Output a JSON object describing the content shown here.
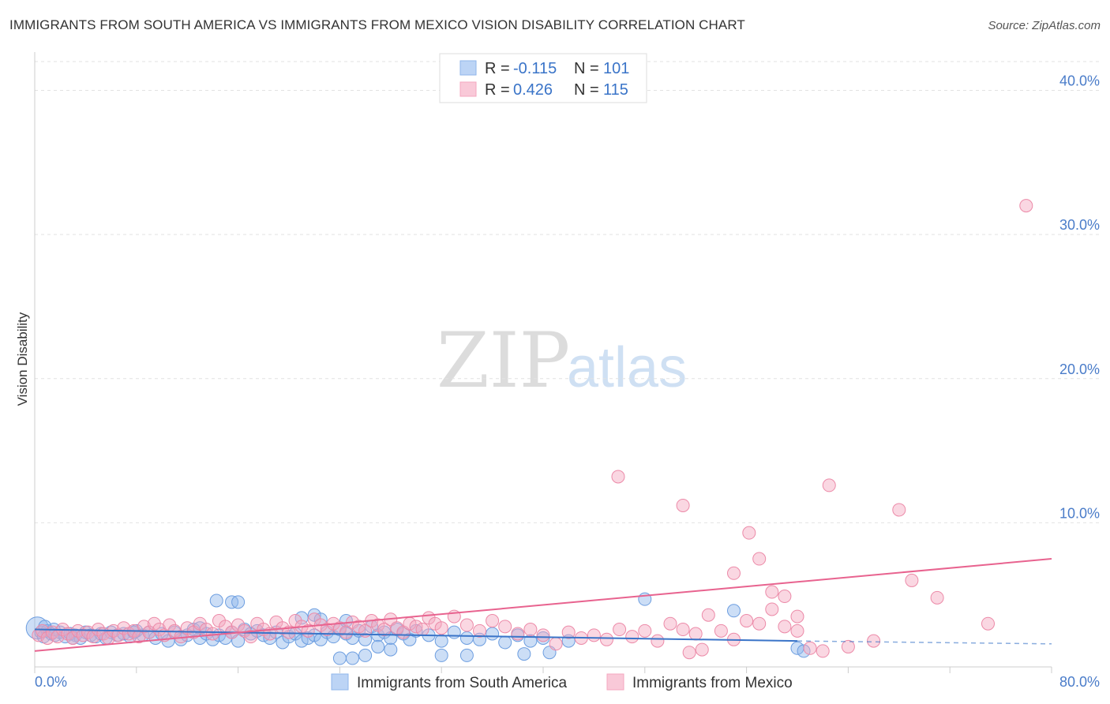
{
  "title": "IMMIGRANTS FROM SOUTH AMERICA VS IMMIGRANTS FROM MEXICO VISION DISABILITY CORRELATION CHART",
  "source": "Source: ZipAtlas.com",
  "watermark": {
    "zip": "ZIP",
    "atlas": "atlas"
  },
  "chart_data": {
    "type": "scatter",
    "title": "IMMIGRANTS FROM SOUTH AMERICA VS IMMIGRANTS FROM MEXICO VISION DISABILITY CORRELATION CHART",
    "xlabel": "",
    "ylabel": "Vision Disability",
    "xlim": [
      0,
      80
    ],
    "ylim": [
      0,
      42
    ],
    "x_tick_labels": [
      "0.0%",
      "80.0%"
    ],
    "y_ticks": [
      10,
      20,
      30,
      40
    ],
    "y_tick_labels": [
      "10.0%",
      "20.0%",
      "30.0%",
      "40.0%"
    ],
    "grid": true,
    "legend": [
      {
        "r_label": "R =",
        "r_value": "-0.115",
        "n_label": "N =",
        "n_value": "101",
        "color": "#8fb6ea"
      },
      {
        "r_label": "R =",
        "r_value": "0.426",
        "n_label": "N =",
        "n_value": "115",
        "color": "#f4a7bf"
      }
    ],
    "series": [
      {
        "name": "Immigrants from South America",
        "color": "#8fb6ea",
        "stroke": "#6d9ee0",
        "trend": {
          "x0": 0,
          "y0": 2.6,
          "x1": 60,
          "y1": 1.8,
          "dash_to": 80,
          "dash_y": 1.6,
          "color": "#3a74c8"
        },
        "points": [
          [
            0.2,
            2.7
          ],
          [
            0.5,
            2.4
          ],
          [
            0.7,
            2.1
          ],
          [
            1.0,
            2.5
          ],
          [
            1.3,
            2.3
          ],
          [
            1.6,
            2.2
          ],
          [
            2.0,
            2.4
          ],
          [
            2.4,
            2.1
          ],
          [
            2.8,
            2.3
          ],
          [
            3.2,
            2.2
          ],
          [
            3.6,
            2.0
          ],
          [
            4.0,
            2.4
          ],
          [
            4.4,
            2.2
          ],
          [
            4.8,
            2.1
          ],
          [
            5.2,
            2.3
          ],
          [
            5.6,
            2.0
          ],
          [
            6.0,
            2.4
          ],
          [
            6.5,
            2.2
          ],
          [
            7.0,
            2.3
          ],
          [
            7.5,
            2.1
          ],
          [
            8.0,
            2.5
          ],
          [
            8.5,
            2.2
          ],
          [
            9.0,
            2.4
          ],
          [
            9.5,
            2.0
          ],
          [
            10.0,
            2.3
          ],
          [
            10.5,
            1.8
          ],
          [
            11.0,
            2.4
          ],
          [
            11.5,
            1.9
          ],
          [
            12.0,
            2.2
          ],
          [
            12.5,
            2.6
          ],
          [
            13.0,
            2.0
          ],
          [
            13.5,
            2.3
          ],
          [
            14.0,
            1.9
          ],
          [
            14.5,
            2.2
          ],
          [
            15.0,
            2.0
          ],
          [
            15.5,
            2.4
          ],
          [
            16.0,
            1.8
          ],
          [
            16.5,
            2.6
          ],
          [
            17.0,
            2.3
          ],
          [
            17.5,
            2.5
          ],
          [
            18.0,
            2.2
          ],
          [
            18.5,
            2.0
          ],
          [
            19.0,
            2.4
          ],
          [
            19.5,
            1.7
          ],
          [
            20.0,
            2.1
          ],
          [
            20.5,
            2.3
          ],
          [
            21.0,
            1.8
          ],
          [
            21.5,
            2.0
          ],
          [
            22.0,
            2.2
          ],
          [
            22.5,
            1.9
          ],
          [
            23.0,
            2.4
          ],
          [
            23.5,
            2.1
          ],
          [
            24.0,
            2.6
          ],
          [
            24.5,
            2.3
          ],
          [
            25.0,
            2.0
          ],
          [
            25.5,
            2.5
          ],
          [
            26.0,
            1.9
          ],
          [
            26.5,
            2.8
          ],
          [
            27.0,
            2.2
          ],
          [
            27.5,
            2.4
          ],
          [
            28.0,
            2.0
          ],
          [
            28.5,
            2.6
          ],
          [
            29.0,
            2.3
          ],
          [
            29.5,
            1.9
          ],
          [
            30.0,
            2.5
          ],
          [
            31.0,
            2.2
          ],
          [
            32.0,
            1.8
          ],
          [
            33.0,
            2.4
          ],
          [
            34.0,
            2.0
          ],
          [
            35.0,
            1.9
          ],
          [
            36.0,
            2.3
          ],
          [
            37.0,
            1.7
          ],
          [
            38.0,
            2.2
          ],
          [
            39.0,
            1.8
          ],
          [
            40.0,
            2.0
          ],
          [
            14.3,
            4.6
          ],
          [
            15.5,
            4.5
          ],
          [
            16.0,
            4.5
          ],
          [
            21.0,
            3.4
          ],
          [
            22.0,
            3.6
          ],
          [
            22.5,
            3.3
          ],
          [
            24.5,
            3.2
          ],
          [
            27.0,
            1.4
          ],
          [
            28.0,
            1.2
          ],
          [
            24.0,
            0.6
          ],
          [
            26.0,
            0.8
          ],
          [
            25.0,
            0.6
          ],
          [
            32.0,
            0.8
          ],
          [
            34.0,
            0.8
          ],
          [
            38.5,
            0.9
          ],
          [
            40.5,
            1.0
          ],
          [
            42.0,
            1.8
          ],
          [
            48.0,
            4.7
          ],
          [
            55.0,
            3.9
          ],
          [
            60.0,
            1.3
          ],
          [
            60.5,
            1.1
          ],
          [
            13.0,
            2.7
          ],
          [
            7.8,
            2.4
          ],
          [
            3.0,
            2.0
          ],
          [
            1.5,
            2.6
          ],
          [
            0.8,
            2.8
          ]
        ]
      },
      {
        "name": "Immigrants from Mexico",
        "color": "#f4a7bf",
        "stroke": "#ec8aa8",
        "trend": {
          "x0": 0,
          "y0": 1.1,
          "x1": 80,
          "y1": 7.5,
          "color": "#e8638f"
        },
        "points": [
          [
            0.3,
            2.2
          ],
          [
            0.6,
            2.5
          ],
          [
            1.0,
            2.0
          ],
          [
            1.4,
            2.4
          ],
          [
            1.8,
            2.1
          ],
          [
            2.2,
            2.6
          ],
          [
            2.6,
            2.3
          ],
          [
            3.0,
            2.0
          ],
          [
            3.4,
            2.5
          ],
          [
            3.8,
            2.2
          ],
          [
            4.2,
            2.4
          ],
          [
            4.6,
            2.1
          ],
          [
            5.0,
            2.6
          ],
          [
            5.4,
            2.3
          ],
          [
            5.8,
            2.0
          ],
          [
            6.2,
            2.5
          ],
          [
            6.6,
            2.2
          ],
          [
            7.0,
            2.7
          ],
          [
            7.4,
            2.3
          ],
          [
            7.8,
            2.5
          ],
          [
            8.2,
            2.1
          ],
          [
            8.6,
            2.8
          ],
          [
            9.0,
            2.4
          ],
          [
            9.4,
            3.0
          ],
          [
            9.8,
            2.6
          ],
          [
            10.2,
            2.2
          ],
          [
            10.6,
            2.9
          ],
          [
            11.0,
            2.5
          ],
          [
            11.5,
            2.1
          ],
          [
            12.0,
            2.7
          ],
          [
            12.5,
            2.4
          ],
          [
            13.0,
            3.0
          ],
          [
            13.5,
            2.6
          ],
          [
            14.0,
            2.3
          ],
          [
            14.5,
            3.2
          ],
          [
            15.0,
            2.8
          ],
          [
            15.5,
            2.4
          ],
          [
            16.0,
            2.9
          ],
          [
            16.5,
            2.5
          ],
          [
            17.0,
            2.1
          ],
          [
            17.5,
            3.0
          ],
          [
            18.0,
            2.6
          ],
          [
            18.5,
            2.3
          ],
          [
            19.0,
            3.1
          ],
          [
            19.5,
            2.7
          ],
          [
            20.0,
            2.4
          ],
          [
            20.5,
            3.2
          ],
          [
            21.0,
            2.8
          ],
          [
            21.5,
            2.5
          ],
          [
            22.0,
            3.3
          ],
          [
            22.5,
            2.9
          ],
          [
            23.0,
            2.6
          ],
          [
            23.5,
            3.0
          ],
          [
            24.0,
            2.7
          ],
          [
            24.5,
            2.4
          ],
          [
            25.0,
            3.1
          ],
          [
            25.5,
            2.8
          ],
          [
            26.0,
            2.5
          ],
          [
            26.5,
            3.2
          ],
          [
            27.0,
            2.9
          ],
          [
            27.5,
            2.6
          ],
          [
            28.0,
            3.3
          ],
          [
            28.5,
            2.7
          ],
          [
            29.0,
            2.4
          ],
          [
            29.5,
            3.0
          ],
          [
            30.0,
            2.8
          ],
          [
            30.5,
            2.6
          ],
          [
            31.0,
            3.4
          ],
          [
            31.5,
            3.0
          ],
          [
            32.0,
            2.7
          ],
          [
            33.0,
            3.5
          ],
          [
            34.0,
            2.9
          ],
          [
            35.0,
            2.5
          ],
          [
            36.0,
            3.2
          ],
          [
            37.0,
            2.8
          ],
          [
            38.0,
            2.3
          ],
          [
            39.0,
            2.6
          ],
          [
            40.0,
            2.2
          ],
          [
            41.0,
            1.6
          ],
          [
            42.0,
            2.4
          ],
          [
            43.0,
            2.0
          ],
          [
            44.0,
            2.2
          ],
          [
            45.0,
            1.9
          ],
          [
            46.0,
            2.6
          ],
          [
            47.0,
            2.1
          ],
          [
            48.0,
            2.5
          ],
          [
            49.0,
            1.8
          ],
          [
            50.0,
            3.0
          ],
          [
            51.0,
            2.6
          ],
          [
            52.0,
            2.3
          ],
          [
            53.0,
            3.6
          ],
          [
            54.0,
            2.5
          ],
          [
            55.0,
            1.9
          ],
          [
            56.0,
            3.2
          ],
          [
            57.0,
            3.0
          ],
          [
            58.0,
            4.0
          ],
          [
            59.0,
            2.8
          ],
          [
            60.0,
            2.5
          ],
          [
            61.0,
            1.3
          ],
          [
            62.0,
            1.1
          ],
          [
            64.0,
            1.4
          ],
          [
            66.0,
            1.8
          ],
          [
            51.5,
            1.0
          ],
          [
            52.5,
            1.2
          ],
          [
            45.9,
            13.2
          ],
          [
            51.0,
            11.2
          ],
          [
            56.2,
            9.3
          ],
          [
            57.0,
            7.5
          ],
          [
            55.0,
            6.5
          ],
          [
            58.0,
            5.2
          ],
          [
            59.0,
            4.9
          ],
          [
            60.0,
            3.5
          ],
          [
            62.5,
            12.6
          ],
          [
            68.0,
            10.9
          ],
          [
            69.0,
            6.0
          ],
          [
            71.0,
            4.8
          ],
          [
            75.0,
            3.0
          ],
          [
            78.0,
            32.0
          ]
        ]
      }
    ]
  }
}
